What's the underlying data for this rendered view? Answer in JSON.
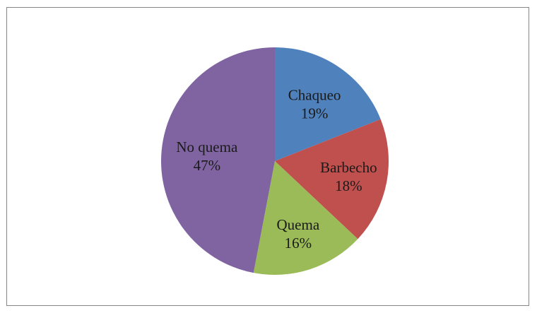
{
  "chart_data": {
    "type": "pie",
    "title": "",
    "categories": [
      "Chaqueo",
      "Barbecho",
      "Quema",
      "No quema"
    ],
    "values": [
      19,
      18,
      16,
      47
    ],
    "value_labels": [
      "19%",
      "18%",
      "16%",
      "47%"
    ],
    "colors": [
      "#4f81bd",
      "#c0504d",
      "#9bbb59",
      "#8064a2"
    ],
    "legend": "none",
    "labels_inside": true
  }
}
